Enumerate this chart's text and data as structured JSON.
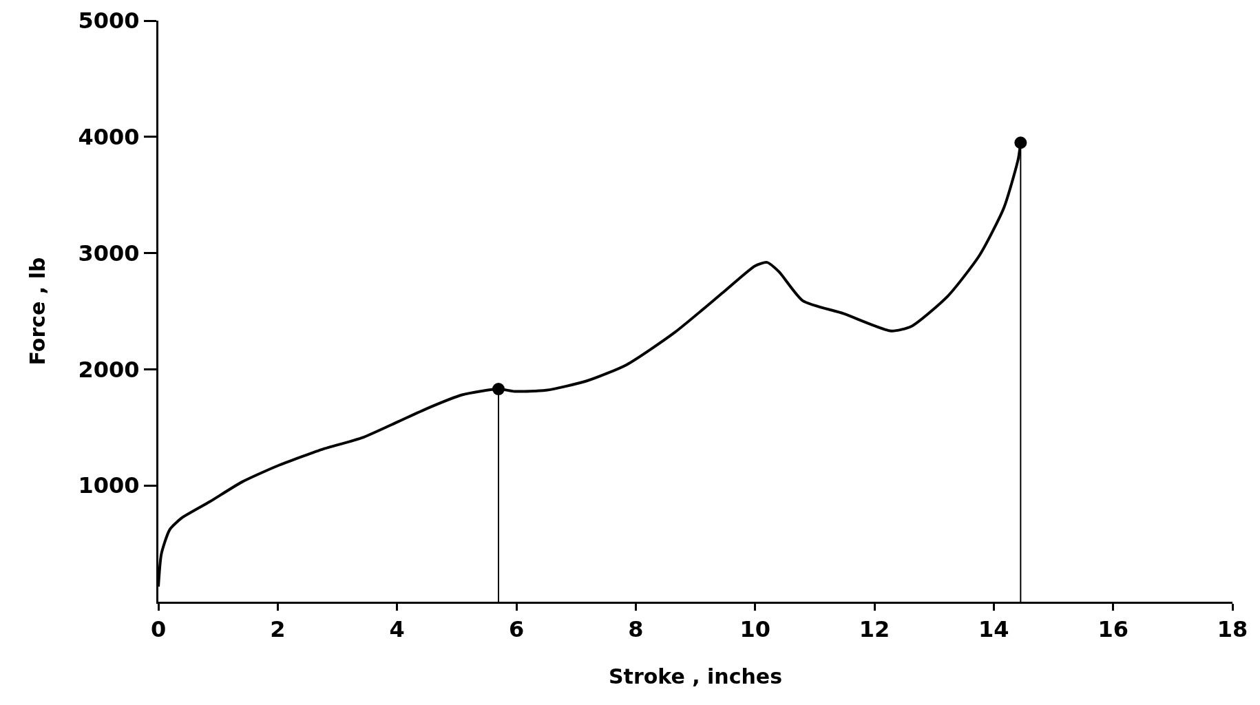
{
  "chart_data": {
    "type": "line",
    "xlabel": "Stroke , inches",
    "ylabel": "Force , lb",
    "xlim": [
      0,
      18
    ],
    "xticks": [
      0,
      2,
      4,
      6,
      8,
      10,
      12,
      14,
      16,
      18
    ],
    "ylim": [
      0,
      5000
    ],
    "yticks": [
      1000,
      2000,
      3000,
      4000,
      5000
    ],
    "grid": false,
    "line_style": "solid",
    "series": [
      {
        "color": "#000000",
        "x": [
          0,
          0.05,
          0.19,
          0.39,
          0.86,
          1.4,
          2.0,
          2.74,
          3.41,
          4.02,
          4.49,
          5.09,
          5.7,
          5.97,
          6.5,
          7.18,
          7.85,
          8.66,
          9.46,
          10.0,
          10.2,
          10.4,
          10.8,
          11.48,
          12.28,
          12.62,
          13.23,
          13.76,
          14.17,
          14.41,
          14.45
        ],
        "values": [
          130,
          410,
          620,
          720,
          860,
          1030,
          1170,
          1310,
          1410,
          1550,
          1660,
          1780,
          1830,
          1810,
          1820,
          1900,
          2040,
          2320,
          2660,
          2890,
          2920,
          2840,
          2590,
          2480,
          2330,
          2370,
          2630,
          2980,
          3390,
          3810,
          3950
        ]
      },
      {
        "type": "lollipop",
        "color": "#000000",
        "x": [
          5.7,
          14.45
        ],
        "values": [
          1830,
          3950
        ]
      }
    ]
  }
}
